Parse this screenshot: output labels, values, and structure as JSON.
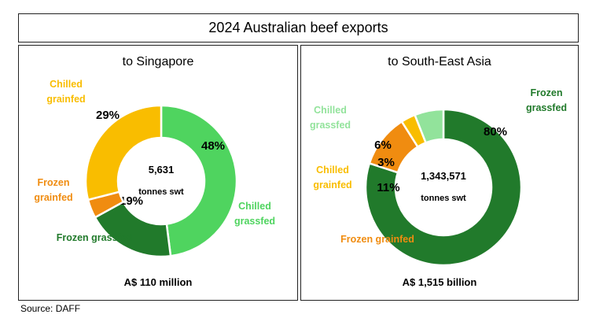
{
  "title": "2024 Australian beef exports",
  "source": "Source: DAFF",
  "colors": {
    "chilled_grassfed": "#4fd45f",
    "frozen_grassfed": "#217a2b",
    "frozen_grainfed": "#f08c10",
    "chilled_grainfed": "#f9bd00",
    "chilled_grassfed_sea": "#92e39b"
  },
  "chart_data": [
    {
      "type": "pie",
      "subtitle": "to Singapore",
      "center_value": "5,631",
      "center_unit": "tonnes swt",
      "total_value": "A$ 110 million",
      "slices": [
        {
          "label_lines": [
            "Chilled",
            "grassfed"
          ],
          "value": 48,
          "label": "48%",
          "color": "#4fd45f",
          "label_color": "#4fd45f"
        },
        {
          "label_lines": [
            "Frozen grassfed"
          ],
          "value": 19,
          "label": "19%",
          "color": "#217a2b",
          "label_color": "#217a2b"
        },
        {
          "label_lines": [
            "Frozen",
            "grainfed"
          ],
          "value": 4,
          "label": "4%",
          "color": "#f08c10",
          "label_color": "#f08c10"
        },
        {
          "label_lines": [
            "Chilled",
            "grainfed"
          ],
          "value": 29,
          "label": "29%",
          "color": "#f9bd00",
          "label_color": "#f9bd00"
        }
      ]
    },
    {
      "type": "pie",
      "subtitle": "to South-East Asia",
      "center_value": "1,343,571",
      "center_unit": "tonnes swt",
      "total_value": "A$ 1,515 billion",
      "slices": [
        {
          "label_lines": [
            "Frozen",
            "grassfed"
          ],
          "value": 80,
          "label": "80%",
          "color": "#217a2b",
          "label_color": "#217a2b"
        },
        {
          "label_lines": [
            "Frozen grainfed"
          ],
          "value": 11,
          "label": "11%",
          "color": "#f08c10",
          "label_color": "#f08c10"
        },
        {
          "label_lines": [
            "Chilled",
            "grainfed"
          ],
          "value": 3,
          "label": "3%",
          "color": "#f9bd00",
          "label_color": "#f9bd00"
        },
        {
          "label_lines": [
            "Chilled",
            "grassfed"
          ],
          "value": 6,
          "label": "6%",
          "color": "#92e39b",
          "label_color": "#92e39b"
        }
      ]
    }
  ]
}
